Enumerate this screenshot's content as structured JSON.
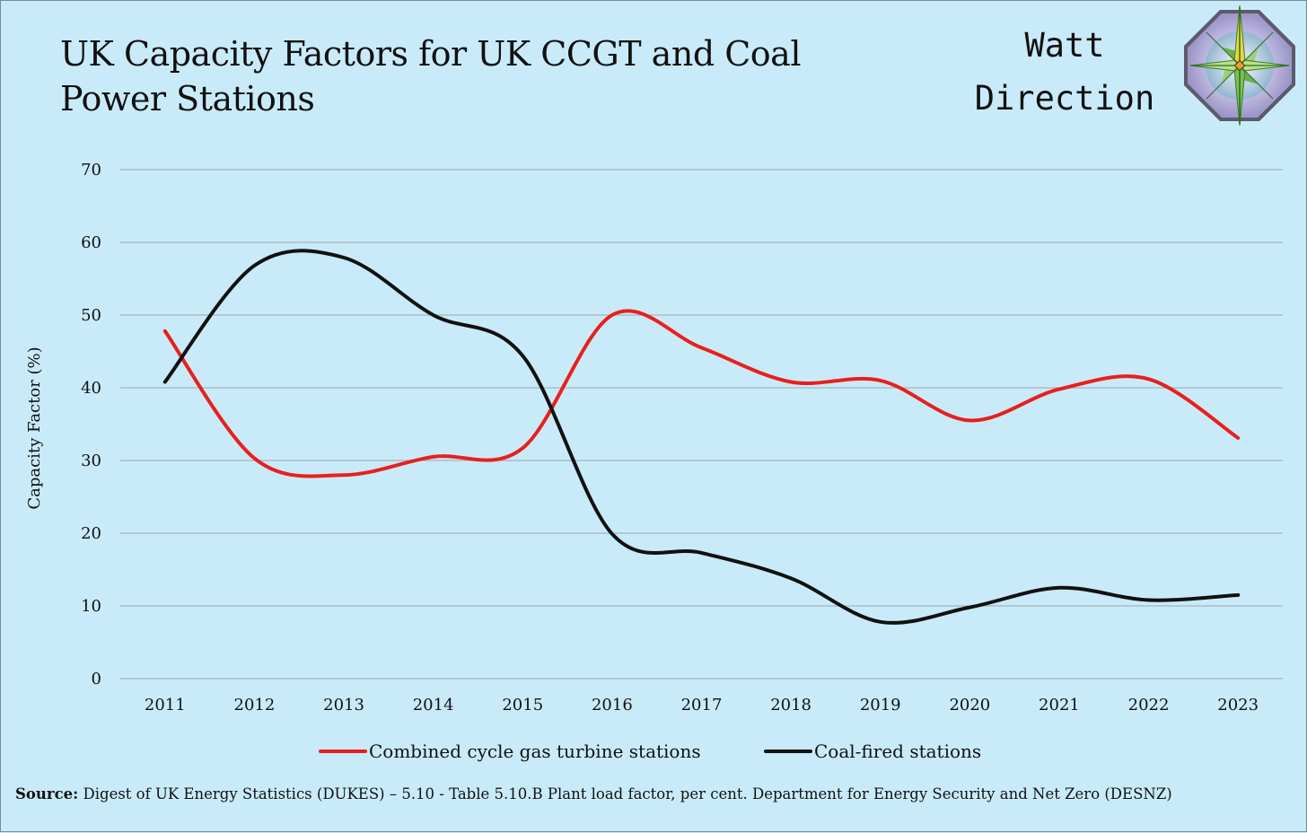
{
  "header": {
    "title_line1": "UK Capacity Factors for UK CCGT and Coal",
    "title_line2": "Power Stations"
  },
  "brand": {
    "line1": "Watt",
    "line2": "Direction",
    "logo_icon": "compass-rose-icon"
  },
  "source": {
    "label": "Source:",
    "text": " Digest of UK Energy Statistics (DUKES) – 5.10 - Table 5.10.B Plant load factor, per cent. Department for Energy Security and Net Zero (DESNZ)"
  },
  "colors": {
    "background": "#c9ebf9",
    "gridline": "#a6b4bc",
    "ccgt": "#e8201c",
    "coal": "#111111"
  },
  "chart_data": {
    "type": "line",
    "title": "UK Capacity Factors for UK CCGT and Coal Power Stations",
    "xlabel": "",
    "ylabel": "Capacity Factor (%)",
    "x": [
      "2011",
      "2012",
      "2013",
      "2014",
      "2015",
      "2016",
      "2017",
      "2018",
      "2019",
      "2020",
      "2021",
      "2022",
      "2023"
    ],
    "ylim": [
      0,
      70
    ],
    "yticks": [
      0,
      10,
      20,
      30,
      40,
      50,
      60,
      70
    ],
    "grid": true,
    "smoothed": true,
    "legend_position": "bottom",
    "series": [
      {
        "name": "Combined cycle gas turbine stations",
        "color": "#e8201c",
        "values": [
          47.8,
          30.3,
          28.0,
          30.5,
          31.7,
          50.0,
          45.5,
          40.8,
          41.0,
          35.5,
          39.8,
          41.2,
          33.1
        ]
      },
      {
        "name": "Coal-fired stations",
        "color": "#111111",
        "values": [
          40.8,
          56.8,
          57.9,
          50.0,
          44.4,
          19.9,
          17.3,
          13.8,
          7.8,
          9.8,
          12.5,
          10.8,
          11.5
        ]
      }
    ]
  }
}
